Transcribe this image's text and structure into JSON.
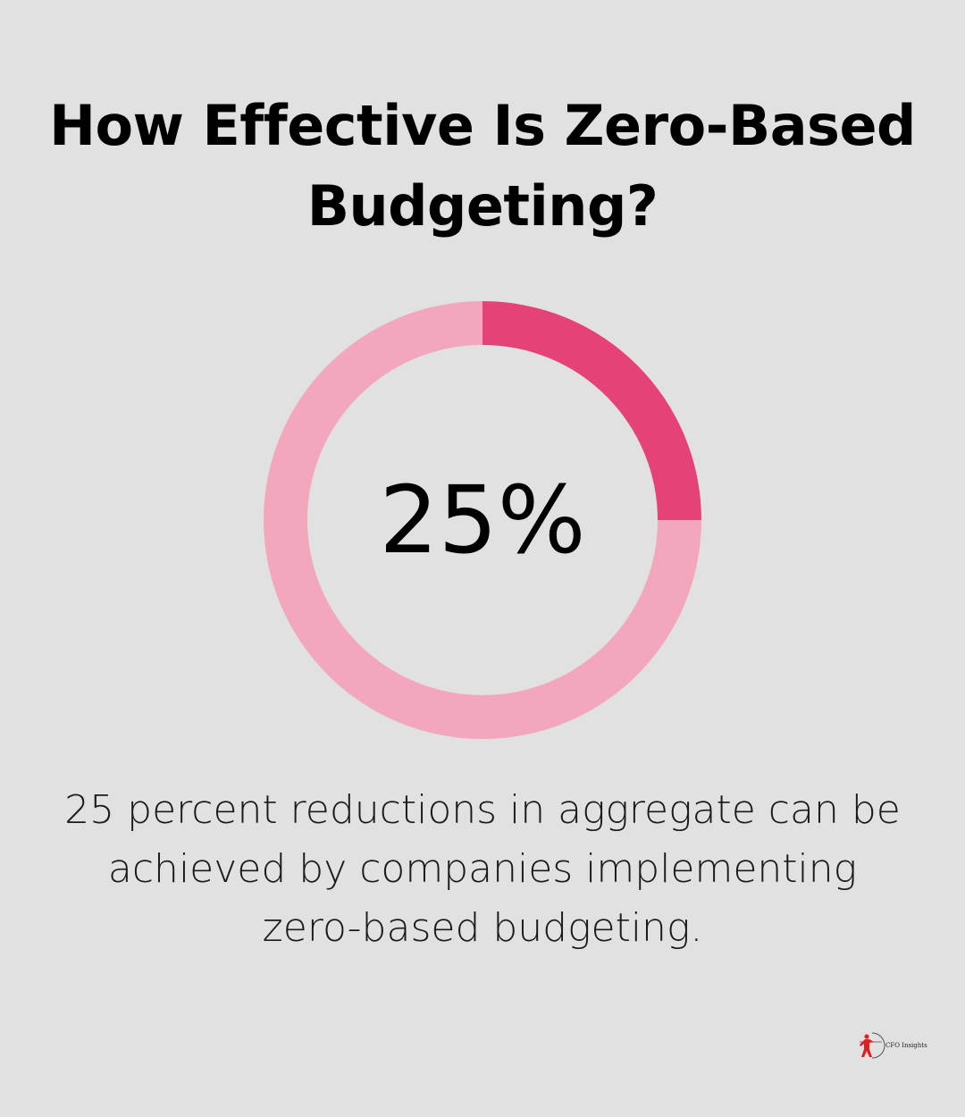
{
  "title": "How Effective Is Zero-Based Budgeting?",
  "caption": "25 percent reductions in aggregate can be achieved by companies implementing zero-based budgeting.",
  "brand": {
    "name": "CFO Insights",
    "logo_icon": "archer-logo-icon",
    "logo_color": "#e02020"
  },
  "colors": {
    "background": "#e0e1e0",
    "highlight": "#e54377",
    "remainder": "#f2a7bd"
  },
  "chart_data": {
    "type": "pie",
    "variant": "donut",
    "center_label": "25%",
    "value": 25,
    "total": 100,
    "slices": [
      {
        "value": 25,
        "color": "#e54377"
      },
      {
        "value": 75,
        "color": "#f2a7bd"
      }
    ]
  }
}
